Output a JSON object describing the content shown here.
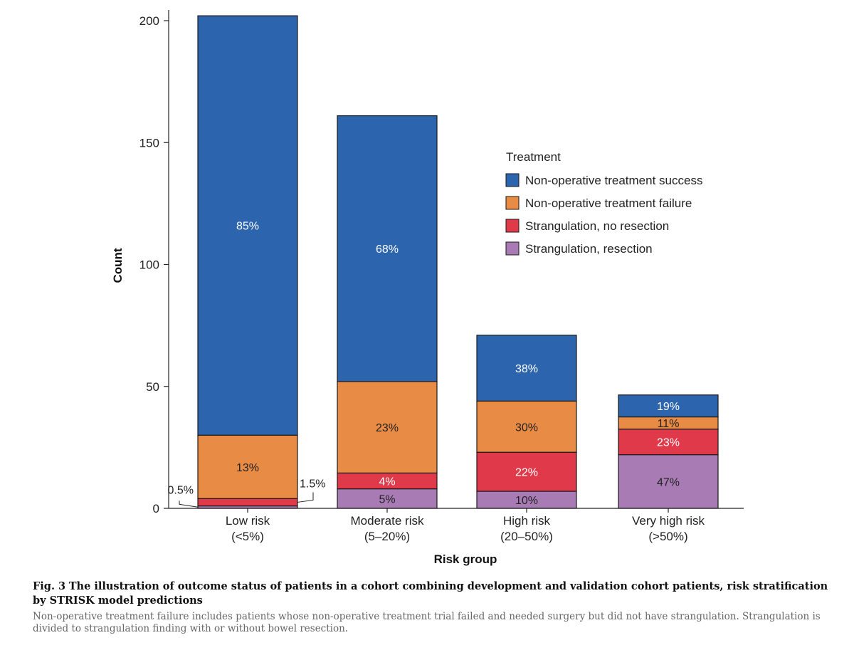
{
  "chart_data": {
    "type": "bar",
    "stacked": true,
    "ylabel": "Count",
    "xlabel": "Risk group",
    "ylim": [
      0,
      200
    ],
    "yticks": [
      0,
      50,
      100,
      150,
      200
    ],
    "categories": [
      {
        "line1": "Low risk",
        "line2": "(<5%)"
      },
      {
        "line1": "Moderate risk",
        "line2": "(5–20%)"
      },
      {
        "line1": "High risk",
        "line2": "(20–50%)"
      },
      {
        "line1": "Very high risk",
        "line2": "(>50%)"
      }
    ],
    "legend_title": "Treatment",
    "legend_position": "top-right",
    "series": [
      {
        "name": "Strangulation, resection",
        "color": "#A97BB5",
        "label_color": "#222222",
        "values": [
          1,
          8,
          7,
          22
        ],
        "labels": [
          "0.5%",
          "5%",
          "10%",
          "47%"
        ],
        "label_outside": [
          true,
          false,
          false,
          false
        ]
      },
      {
        "name": "Strangulation, no resection",
        "color": "#E03A4A",
        "label_color": "#ffffff",
        "values": [
          3,
          6.5,
          16,
          10.5
        ],
        "labels": [
          "1.5%",
          "4%",
          "22%",
          "23%"
        ],
        "label_outside": [
          true,
          false,
          false,
          false
        ]
      },
      {
        "name": "Non-operative treatment failure",
        "color": "#E88B45",
        "label_color": "#222222",
        "values": [
          26,
          37.5,
          21,
          5
        ],
        "labels": [
          "13%",
          "23%",
          "30%",
          "11%"
        ],
        "label_outside": [
          false,
          false,
          false,
          false
        ]
      },
      {
        "name": "Non-operative treatment success",
        "color": "#2C65AD",
        "label_color": "#ffffff",
        "values": [
          172,
          109,
          27,
          9
        ],
        "labels": [
          "85%",
          "68%",
          "38%",
          "19%"
        ],
        "label_outside": [
          false,
          false,
          false,
          false
        ]
      }
    ],
    "legend_order": [
      3,
      2,
      1,
      0
    ]
  },
  "caption": {
    "fig_label": "Fig. 3",
    "title": "The illustration of outcome status of patients in a cohort combining development and validation cohort patients, risk stratification by STRISK model predictions",
    "note": "Non-operative treatment failure includes patients whose non-operative treatment trial failed and needed surgery but did not have strangulation. Strangulation is divided to strangulation finding with or without bowel resection."
  }
}
